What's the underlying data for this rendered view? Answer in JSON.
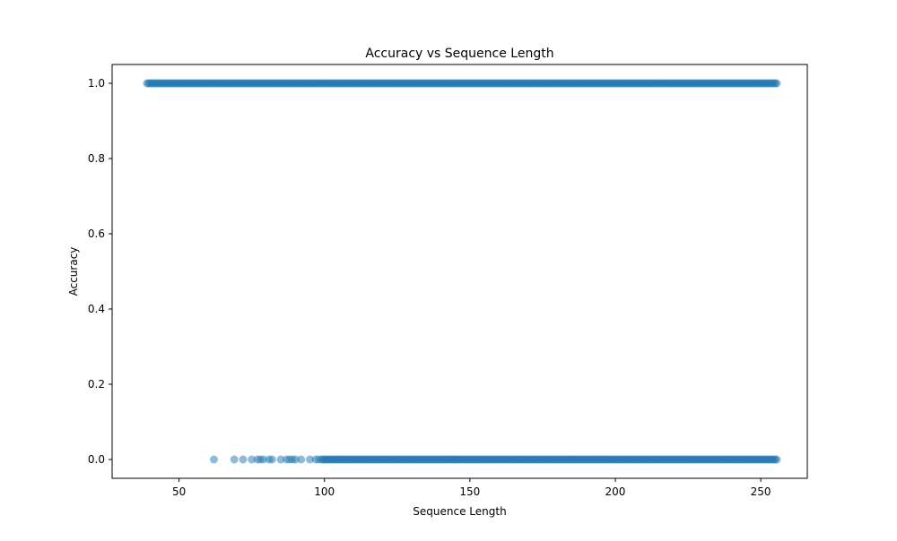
{
  "chart_data": {
    "type": "scatter",
    "title": "Accuracy vs Sequence Length",
    "xlabel": "Sequence Length",
    "ylabel": "Accuracy",
    "xlim": [
      27,
      266
    ],
    "ylim": [
      -0.05,
      1.05
    ],
    "xticks": [
      50,
      100,
      150,
      200,
      250
    ],
    "yticks": [
      0.0,
      0.2,
      0.4,
      0.6,
      0.8,
      1.0
    ],
    "xtick_labels": [
      "50",
      "100",
      "150",
      "200",
      "250"
    ],
    "ytick_labels": [
      "0.0",
      "0.2",
      "0.4",
      "0.6",
      "0.8",
      "1.0"
    ],
    "grid": false,
    "legend": "none",
    "marker_color": "#1f77b4",
    "marker_alpha": 0.5,
    "series": [
      {
        "accuracy": 1.0,
        "x_ranges": [
          [
            39,
            255
          ]
        ]
      },
      {
        "accuracy": 0.0,
        "x_points": [
          62,
          69,
          72,
          75,
          77,
          78,
          79,
          81,
          82,
          85,
          87,
          88,
          89,
          90,
          92,
          95,
          97,
          98
        ],
        "x_ranges": [
          [
            99,
            255
          ]
        ]
      }
    ]
  }
}
